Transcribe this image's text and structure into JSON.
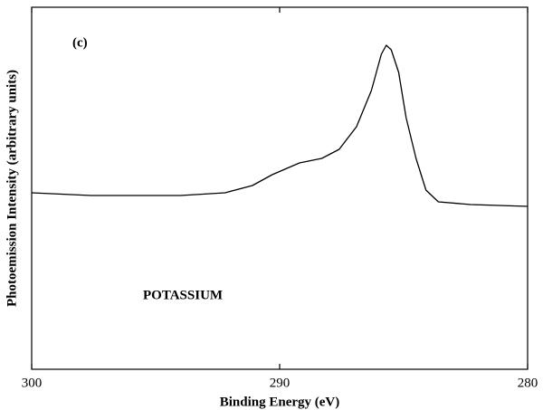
{
  "chart_data": {
    "type": "line",
    "x_label": "Binding Energy (eV)",
    "y_label": "Photoemission Intensity (arbitrary units)",
    "annotations": [
      "(c)",
      "POTASSIUM"
    ],
    "xlim": [
      300,
      280
    ],
    "xticks": [
      300,
      290,
      280
    ],
    "ylim": [
      0,
      100
    ],
    "grid": false,
    "series": [
      {
        "color": "#000000",
        "x": [
          300,
          297.6,
          294.0,
          292.2,
          291.1,
          290.3,
          289.2,
          288.3,
          287.6,
          286.9,
          286.3,
          285.9,
          285.7,
          285.5,
          285.2,
          284.9,
          284.5,
          284.1,
          283.6,
          282.3,
          280
        ],
        "values": [
          48.75,
          48,
          48,
          48.75,
          50.75,
          53.75,
          57,
          58.25,
          60.75,
          67,
          77,
          87,
          89.5,
          88.25,
          82,
          69.5,
          58.25,
          49.5,
          46.25,
          45.5,
          45
        ]
      }
    ]
  }
}
